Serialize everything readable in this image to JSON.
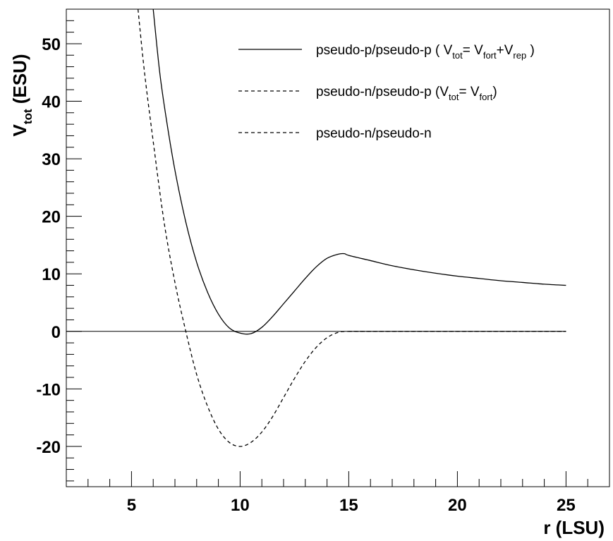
{
  "chart_data": {
    "type": "line",
    "title": "",
    "xlabel": "r (LSU)",
    "ylabel": {
      "main": "V",
      "sub": "tot",
      "rest": " (ESU)"
    },
    "xlim": [
      2,
      27
    ],
    "ylim": [
      -27,
      56
    ],
    "x_ticks": [
      5,
      10,
      15,
      20,
      25
    ],
    "y_ticks": [
      -20,
      -10,
      0,
      10,
      20,
      30,
      40,
      50
    ],
    "grid": false,
    "legend_position": "top-right",
    "reference_line": {
      "y": 0,
      "x_range": [
        2,
        25
      ]
    },
    "legend": [
      {
        "series_index": 0,
        "style": "solid",
        "parts": [
          {
            "t": "pseudo-p/pseudo-p ( V"
          },
          {
            "t": "tot",
            "sub": true
          },
          {
            "t": "= V"
          },
          {
            "t": "fort",
            "sub": true
          },
          {
            "t": "+V"
          },
          {
            "t": "rep",
            "sub": true
          },
          {
            "t": " )"
          }
        ]
      },
      {
        "series_index": 1,
        "style": "dashed",
        "parts": [
          {
            "t": "pseudo-n/pseudo-p (V"
          },
          {
            "t": "tot",
            "sub": true
          },
          {
            "t": "= V"
          },
          {
            "t": "fort",
            "sub": true
          },
          {
            "t": ")"
          }
        ]
      },
      {
        "series_index": 2,
        "style": "dashed",
        "parts": [
          {
            "t": "pseudo-n/pseudo-n"
          }
        ]
      }
    ],
    "series": [
      {
        "style": "solid",
        "x": [
          6.0,
          6.3,
          6.6,
          7.0,
          7.5,
          8.0,
          8.5,
          9.0,
          9.5,
          10.0,
          10.5,
          11.0,
          11.5,
          12.0,
          12.5,
          13.0,
          13.5,
          14.0,
          14.5,
          14.8,
          15.0,
          16.0,
          17.0,
          18.0,
          19.0,
          20.0,
          21.0,
          22.0,
          23.0,
          24.0,
          25.0
        ],
        "y": [
          56.0,
          45.0,
          37.0,
          28.0,
          19.0,
          12.0,
          6.8,
          3.0,
          0.6,
          -0.3,
          -0.4,
          0.7,
          2.6,
          4.8,
          7.0,
          9.2,
          11.2,
          12.7,
          13.4,
          13.5,
          13.2,
          12.3,
          11.4,
          10.7,
          10.1,
          9.6,
          9.2,
          8.8,
          8.5,
          8.2,
          8.0
        ]
      },
      {
        "style": "dashed",
        "x": [
          5.3,
          5.6,
          6.0,
          6.5,
          7.0,
          7.5,
          8.0,
          8.5,
          9.0,
          9.5,
          10.0,
          10.5,
          11.0,
          11.5,
          12.0,
          12.5,
          13.0,
          13.5,
          14.0,
          14.5,
          15.0,
          16.0,
          18.0,
          20.0,
          22.0,
          25.0
        ],
        "y": [
          56.0,
          45.0,
          33.0,
          19.0,
          8.5,
          0.0,
          -7.5,
          -13.0,
          -17.0,
          -19.3,
          -20.0,
          -19.3,
          -17.5,
          -14.8,
          -11.5,
          -8.2,
          -5.2,
          -2.8,
          -1.1,
          -0.2,
          0.0,
          0.0,
          0.0,
          0.0,
          0.0,
          0.0
        ]
      },
      {
        "style": "dashed",
        "x": [
          15.0,
          17.5,
          20.0,
          22.5,
          25.0
        ],
        "y": [
          0.0,
          0.0,
          0.0,
          0.0,
          0.0
        ]
      }
    ]
  }
}
